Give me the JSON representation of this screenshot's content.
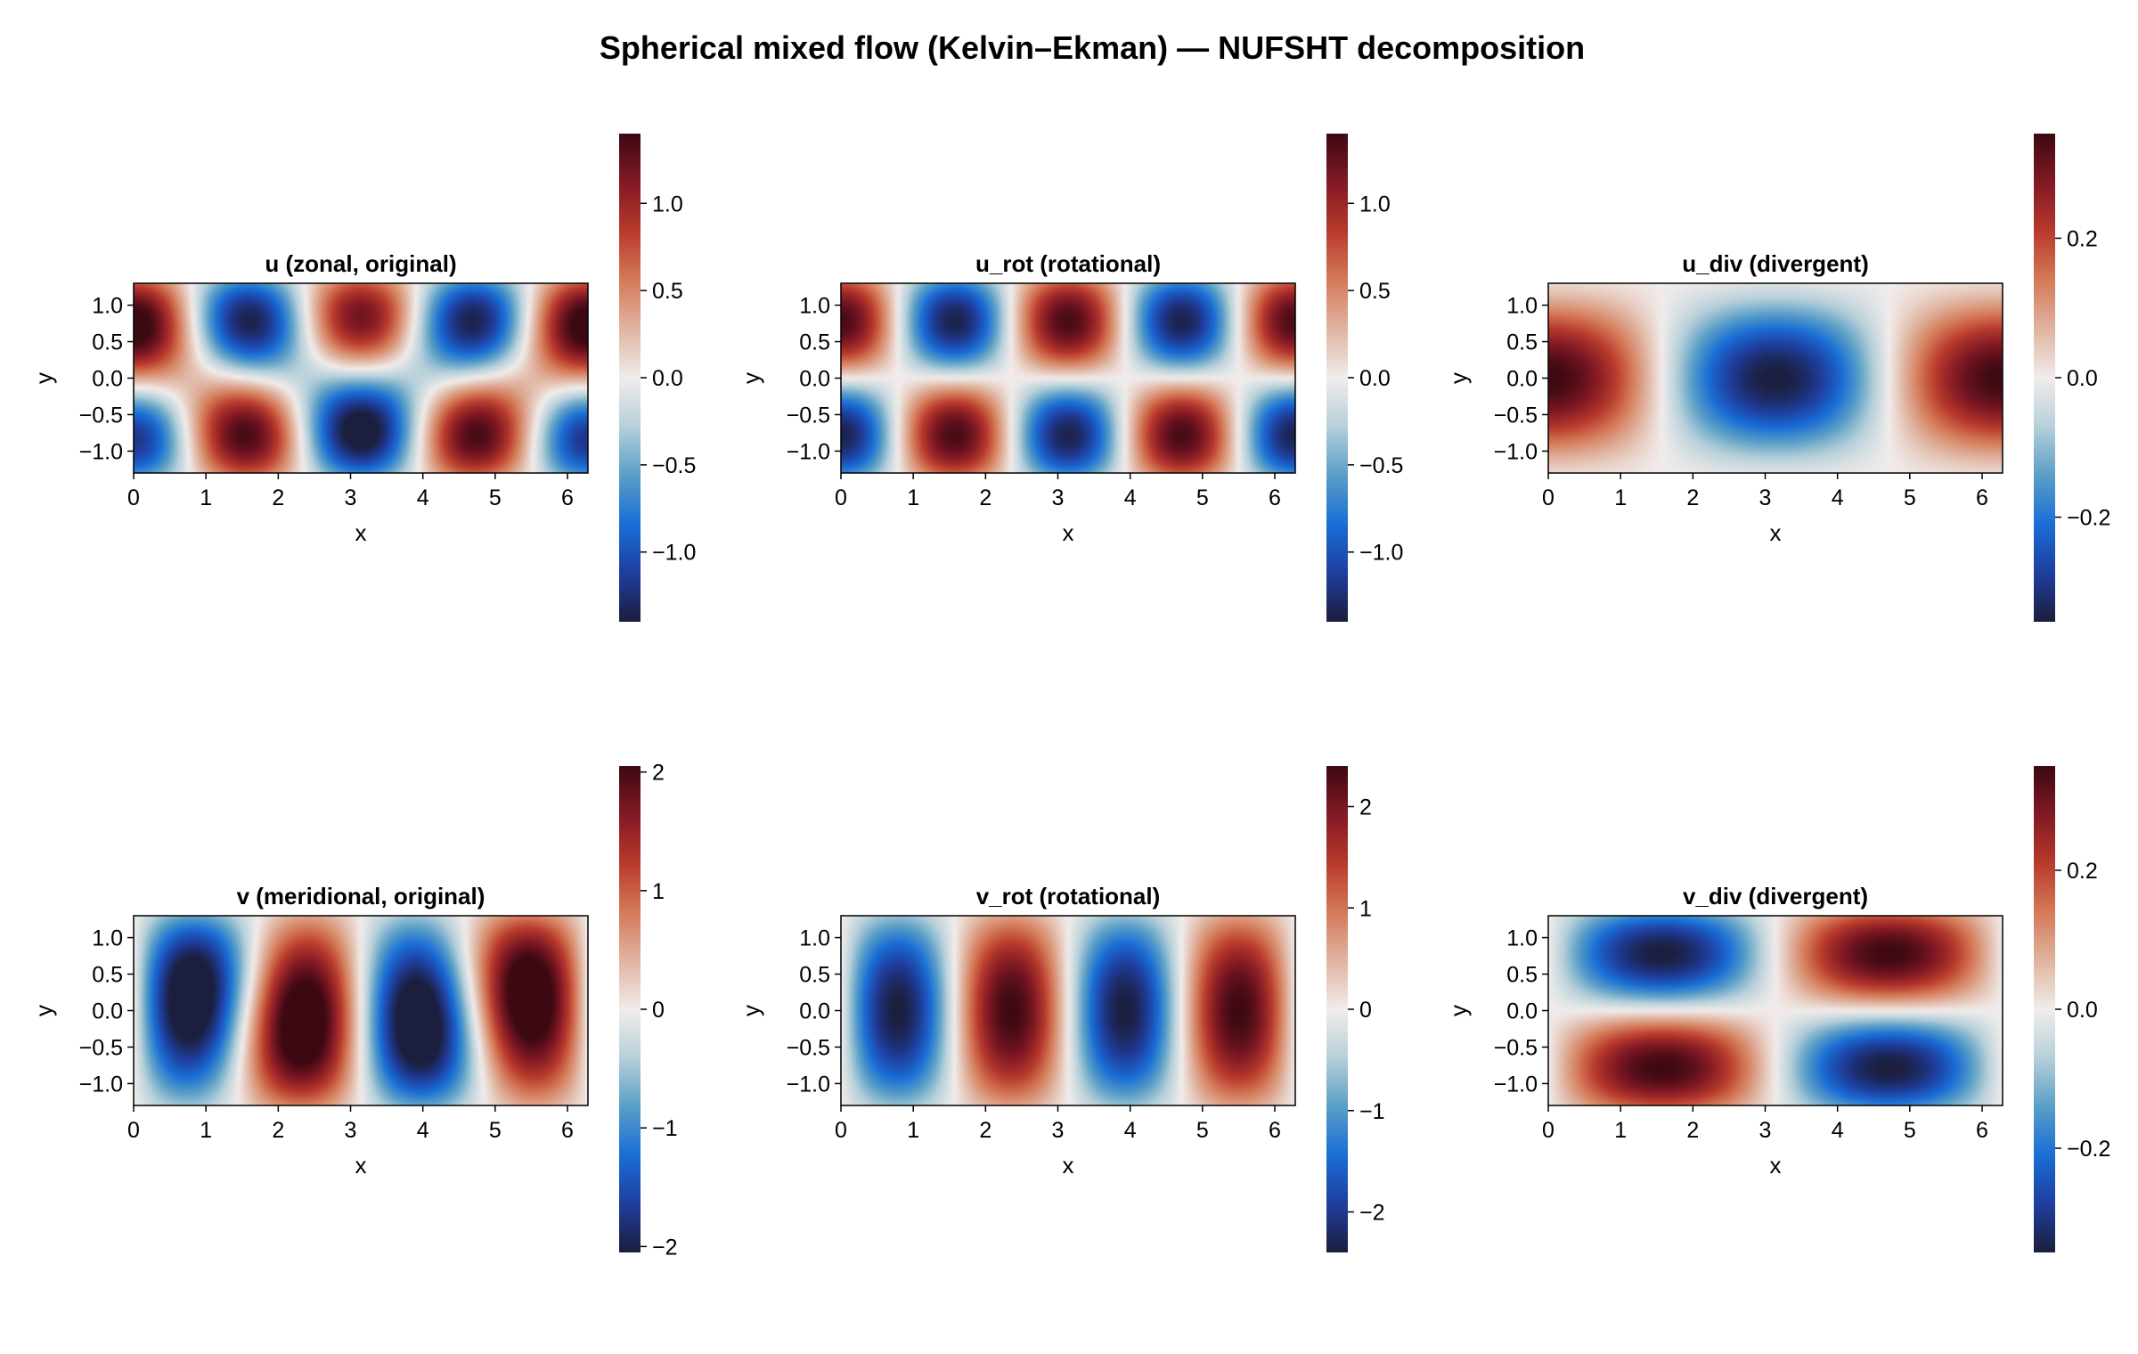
{
  "figure": {
    "title": "Spherical mixed flow (Kelvin–Ekman) — NUFSHT decomposition"
  },
  "colormap": {
    "name": "balance",
    "stops": [
      "#1b1e3c",
      "#1f3e9e",
      "#1a6ed6",
      "#5a9fc7",
      "#b7d0da",
      "#f1eceb",
      "#e0b4a0",
      "#d57a58",
      "#b83a2c",
      "#821925",
      "#3c0912"
    ]
  },
  "chart_data": [
    {
      "type": "heatmap",
      "id": "u",
      "title": "u (zonal, original)",
      "xlabel": "x",
      "ylabel": "y",
      "xlim": [
        0,
        6.2832
      ],
      "ylim": [
        -1.3,
        1.3
      ],
      "xticks": [
        "0",
        "1",
        "2",
        "3",
        "4",
        "5",
        "6"
      ],
      "yticks": [
        "1.0",
        "0.5",
        "0.0",
        "-0.5",
        "-1.0"
      ],
      "colorbar": {
        "range": [
          -1.4,
          1.4
        ],
        "ticks": [
          1.0,
          0.5,
          0.0,
          -0.5,
          -1.0
        ],
        "tick_labels": [
          "1.0",
          "0.5",
          "0.0",
          "−0.5",
          "−1.0"
        ]
      },
      "field": "sum of u_rot and u_div"
    },
    {
      "type": "heatmap",
      "id": "u_rot",
      "title": "u_rot (rotational)",
      "xlabel": "x",
      "ylabel": "y",
      "xlim": [
        0,
        6.2832
      ],
      "ylim": [
        -1.3,
        1.3
      ],
      "xticks": [
        "0",
        "1",
        "2",
        "3",
        "4",
        "5",
        "6"
      ],
      "yticks": [
        "1.0",
        "0.5",
        "0.0",
        "-0.5",
        "-1.0"
      ],
      "colorbar": {
        "range": [
          -1.4,
          1.4
        ],
        "ticks": [
          1.0,
          0.5,
          0.0,
          -0.5,
          -1.0
        ],
        "tick_labels": [
          "1.0",
          "0.5",
          "0.0",
          "−0.5",
          "−1.0"
        ]
      },
      "field": "1.35 cos(2x) sin(2y)"
    },
    {
      "type": "heatmap",
      "id": "u_div",
      "title": "u_div (divergent)",
      "xlabel": "x",
      "ylabel": "y",
      "xlim": [
        0,
        6.2832
      ],
      "ylim": [
        -1.3,
        1.3
      ],
      "xticks": [
        "0",
        "1",
        "2",
        "3",
        "4",
        "5",
        "6"
      ],
      "yticks": [
        "1.0",
        "0.5",
        "0.0",
        "-0.5",
        "-1.0"
      ],
      "colorbar": {
        "range": [
          -0.35,
          0.35
        ],
        "ticks": [
          0.2,
          0.0,
          -0.2
        ],
        "tick_labels": [
          "0.2",
          "0.0",
          "−0.2"
        ]
      },
      "field": "0.35 cos(x) cos(y)^2"
    },
    {
      "type": "heatmap",
      "id": "v",
      "title": "v (meridional, original)",
      "xlabel": "x",
      "ylabel": "y",
      "xlim": [
        0,
        6.2832
      ],
      "ylim": [
        -1.3,
        1.3
      ],
      "xticks": [
        "0",
        "1",
        "2",
        "3",
        "4",
        "5",
        "6"
      ],
      "yticks": [
        "1.0",
        "0.5",
        "0.0",
        "-0.5",
        "-1.0"
      ],
      "colorbar": {
        "range": [
          -2.05,
          2.05
        ],
        "ticks": [
          2,
          1,
          0,
          -1,
          -2
        ],
        "tick_labels": [
          "2",
          "1",
          "0",
          "−1",
          "−2"
        ]
      },
      "field": "sum of v_rot and v_div"
    },
    {
      "type": "heatmap",
      "id": "v_rot",
      "title": "v_rot (rotational)",
      "xlabel": "x",
      "ylabel": "y",
      "xlim": [
        0,
        6.2832
      ],
      "ylim": [
        -1.3,
        1.3
      ],
      "xticks": [
        "0",
        "1",
        "2",
        "3",
        "4",
        "5",
        "6"
      ],
      "yticks": [
        "1.0",
        "0.5",
        "0.0",
        "-0.5",
        "-1.0"
      ],
      "colorbar": {
        "range": [
          -2.4,
          2.4
        ],
        "ticks": [
          2,
          1,
          0,
          -1,
          -2
        ],
        "tick_labels": [
          "2",
          "1",
          "0",
          "−1",
          "−2"
        ]
      },
      "field": "-2.4 sin(2x) cos(y)"
    },
    {
      "type": "heatmap",
      "id": "v_div",
      "title": "v_div (divergent)",
      "xlabel": "x",
      "ylabel": "y",
      "xlim": [
        0,
        6.2832
      ],
      "ylim": [
        -1.3,
        1.3
      ],
      "xticks": [
        "0",
        "1",
        "2",
        "3",
        "4",
        "5",
        "6"
      ],
      "yticks": [
        "1.0",
        "0.5",
        "0.0",
        "-0.5",
        "-1.0"
      ],
      "colorbar": {
        "range": [
          -0.35,
          0.35
        ],
        "ticks": [
          0.2,
          0.0,
          -0.2
        ],
        "tick_labels": [
          "0.2",
          "0.0",
          "−0.2"
        ]
      },
      "field": "-0.35 sin(x) sin(2y)"
    }
  ]
}
